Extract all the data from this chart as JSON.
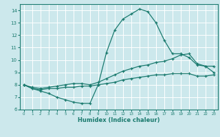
{
  "background_color": "#cce8ec",
  "grid_color": "#ffffff",
  "line_color": "#1a7a6e",
  "xlabel": "Humidex (Indice chaleur)",
  "ylim": [
    6,
    14.5
  ],
  "xlim": [
    -0.5,
    23.5
  ],
  "yticks": [
    6,
    7,
    8,
    9,
    10,
    11,
    12,
    13,
    14
  ],
  "xticks": [
    0,
    1,
    2,
    3,
    4,
    5,
    6,
    7,
    8,
    9,
    10,
    11,
    12,
    13,
    14,
    15,
    16,
    17,
    18,
    19,
    20,
    21,
    22,
    23
  ],
  "series1_x": [
    0,
    1,
    2,
    3,
    4,
    5,
    6,
    7,
    8,
    9,
    10,
    11,
    12,
    13,
    14,
    15,
    16,
    17,
    18,
    19,
    20,
    21,
    22,
    23
  ],
  "series1_y": [
    8.0,
    7.7,
    7.5,
    7.3,
    7.0,
    6.8,
    6.6,
    6.5,
    6.5,
    8.0,
    10.6,
    12.4,
    13.3,
    13.7,
    14.1,
    13.9,
    13.0,
    11.6,
    10.5,
    10.5,
    10.2,
    9.6,
    9.5,
    9.0
  ],
  "series2_x": [
    0,
    1,
    2,
    3,
    4,
    5,
    6,
    7,
    8,
    9,
    10,
    11,
    12,
    13,
    14,
    15,
    16,
    17,
    18,
    19,
    20,
    21,
    22,
    23
  ],
  "series2_y": [
    8.0,
    7.8,
    7.7,
    7.8,
    7.9,
    8.0,
    8.1,
    8.1,
    8.0,
    8.2,
    8.5,
    8.8,
    9.1,
    9.3,
    9.5,
    9.6,
    9.8,
    9.9,
    10.1,
    10.4,
    10.5,
    9.7,
    9.5,
    9.5
  ],
  "series3_x": [
    0,
    1,
    2,
    3,
    4,
    5,
    6,
    7,
    8,
    9,
    10,
    11,
    12,
    13,
    14,
    15,
    16,
    17,
    18,
    19,
    20,
    21,
    22,
    23
  ],
  "series3_y": [
    8.0,
    7.7,
    7.6,
    7.7,
    7.7,
    7.8,
    7.8,
    7.9,
    7.9,
    8.0,
    8.1,
    8.2,
    8.4,
    8.5,
    8.6,
    8.7,
    8.8,
    8.8,
    8.9,
    8.9,
    8.9,
    8.7,
    8.7,
    8.8
  ]
}
